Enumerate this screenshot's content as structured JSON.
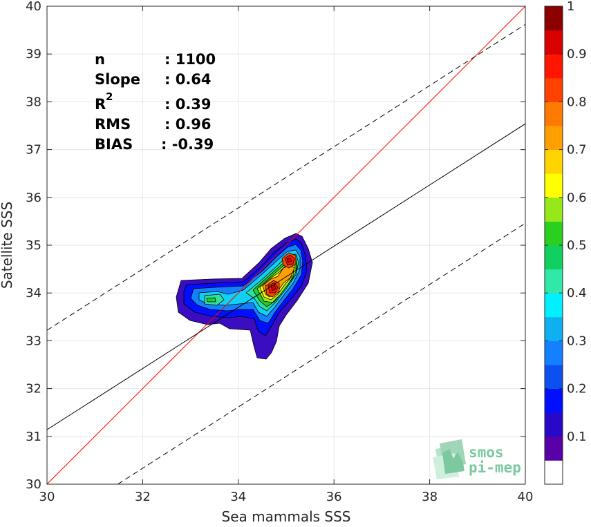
{
  "chart_data": {
    "type": "scatter-density-contour",
    "xlabel": "Sea mammals SSS",
    "ylabel": "Satellite SSS",
    "xlim": [
      30,
      40
    ],
    "ylim": [
      30,
      40
    ],
    "xticks": [
      "30",
      "32",
      "34",
      "36",
      "38",
      "40"
    ],
    "yticks": [
      "30",
      "31",
      "32",
      "33",
      "34",
      "35",
      "36",
      "37",
      "38",
      "39",
      "40"
    ],
    "grid": true,
    "stats": [
      {
        "label": "n",
        "value": ": 1100"
      },
      {
        "label": "Slope",
        "value": ": 0.64"
      },
      {
        "label": "R",
        "sup": "2",
        "value": ": 0.39"
      },
      {
        "label": "RMS",
        "value": ": 0.96"
      },
      {
        "label": "BIAS",
        "value": ": -0.39"
      }
    ],
    "lines": [
      {
        "name": "identity",
        "color": "#ff0000",
        "x": [
          30,
          40
        ],
        "y": [
          30,
          40
        ]
      },
      {
        "name": "regression",
        "color": "#000000",
        "x": [
          30,
          40
        ],
        "y": [
          31.14,
          37.54
        ]
      },
      {
        "name": "upper-bound",
        "color": "#000000",
        "dash": true,
        "x": [
          30,
          40
        ],
        "y": [
          33.22,
          39.62
        ]
      },
      {
        "name": "lower-bound",
        "color": "#000000",
        "dash": true,
        "x": [
          31.48,
          40
        ],
        "y": [
          30,
          35.46
        ]
      }
    ],
    "density_peaks": [
      {
        "x": 34.78,
        "y": 34.05,
        "value": 0.95
      },
      {
        "x": 35.12,
        "y": 34.68,
        "value": 0.92
      },
      {
        "x": 33.38,
        "y": 33.84,
        "value": 0.5
      }
    ],
    "colorbar": {
      "ticks": [
        "0.1",
        "0.2",
        "0.3",
        "0.4",
        "0.5",
        "0.6",
        "0.7",
        "0.8",
        "0.9",
        "1"
      ],
      "colors": [
        "#ffffff",
        "#5a00a8",
        "#2a08c8",
        "#0010ff",
        "#0d50f0",
        "#1380ff",
        "#10b0f0",
        "#00f0ff",
        "#30e8a8",
        "#10d060",
        "#2ad020",
        "#96e81a",
        "#ffff00",
        "#ffd500",
        "#ffa000",
        "#ff7a00",
        "#ff4200",
        "#ff1500",
        "#d90000",
        "#8c0000"
      ]
    }
  },
  "logo": {
    "line1": "smos",
    "line2": "pi-mep"
  }
}
